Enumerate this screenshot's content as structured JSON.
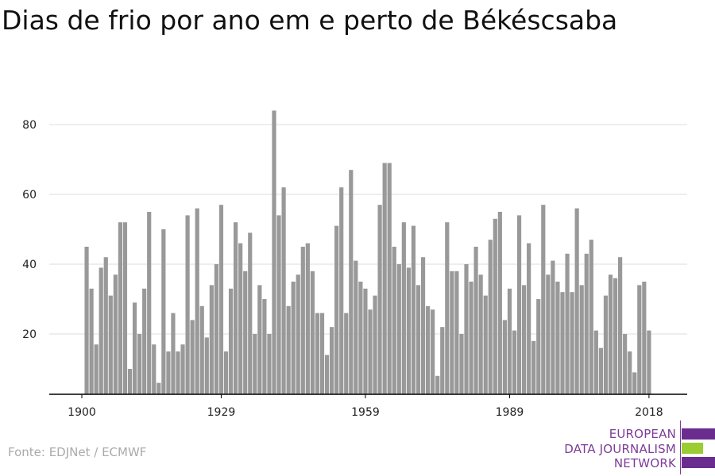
{
  "title": "Dias de frio por ano em e perto de Békéscsaba",
  "source": "Fonte: EDJNet / ECMWF",
  "logo": {
    "line1": "EUROPEAN",
    "line2": "DATA JOURNALISM",
    "line3": "NETWORK",
    "colors": [
      "#6a2c8e",
      "#9acd32",
      "#6a2c8e"
    ]
  },
  "colors": {
    "bar": "#999999",
    "grid": "#dddddd",
    "axis": "#000000"
  },
  "chart_data": {
    "type": "bar",
    "title": "Dias de frio por ano em e perto de Békéscsaba",
    "xlabel": "",
    "ylabel": "",
    "ylim": [
      3,
      86
    ],
    "xlim": [
      1899,
      2020
    ],
    "y_ticks": [
      20,
      40,
      60,
      80
    ],
    "x_ticks": [
      1900,
      1929,
      1959,
      1989,
      2018
    ],
    "grid": true,
    "x": [
      1901,
      1902,
      1903,
      1904,
      1905,
      1906,
      1907,
      1908,
      1909,
      1910,
      1911,
      1912,
      1913,
      1914,
      1915,
      1916,
      1917,
      1918,
      1919,
      1920,
      1921,
      1922,
      1923,
      1924,
      1925,
      1926,
      1927,
      1928,
      1929,
      1930,
      1931,
      1932,
      1933,
      1934,
      1935,
      1936,
      1937,
      1938,
      1939,
      1940,
      1941,
      1942,
      1943,
      1944,
      1945,
      1946,
      1947,
      1948,
      1949,
      1950,
      1951,
      1952,
      1953,
      1954,
      1955,
      1956,
      1957,
      1958,
      1959,
      1960,
      1961,
      1962,
      1963,
      1964,
      1965,
      1966,
      1967,
      1968,
      1969,
      1970,
      1971,
      1972,
      1973,
      1974,
      1975,
      1976,
      1977,
      1978,
      1979,
      1980,
      1981,
      1982,
      1983,
      1984,
      1985,
      1986,
      1987,
      1988,
      1989,
      1990,
      1991,
      1992,
      1993,
      1994,
      1995,
      1996,
      1997,
      1998,
      1999,
      2000,
      2001,
      2002,
      2003,
      2004,
      2005,
      2006,
      2007,
      2008,
      2009,
      2010,
      2011,
      2012,
      2013,
      2014,
      2015,
      2016,
      2017,
      2018
    ],
    "values": [
      45,
      33,
      17,
      39,
      42,
      31,
      37,
      52,
      52,
      10,
      29,
      20,
      33,
      55,
      17,
      6,
      50,
      15,
      26,
      15,
      17,
      54,
      24,
      56,
      28,
      19,
      34,
      40,
      57,
      15,
      33,
      52,
      46,
      38,
      49,
      20,
      34,
      30,
      20,
      84,
      54,
      62,
      28,
      35,
      37,
      45,
      46,
      38,
      26,
      26,
      14,
      22,
      51,
      62,
      26,
      67,
      41,
      35,
      33,
      27,
      31,
      57,
      69,
      69,
      45,
      40,
      52,
      39,
      51,
      34,
      42,
      28,
      27,
      8,
      22,
      52,
      38,
      38,
      20,
      40,
      35,
      45,
      37,
      31,
      47,
      53,
      55,
      24,
      33,
      21,
      54,
      34,
      46,
      18,
      30,
      57,
      37,
      41,
      35,
      32,
      43,
      32,
      56,
      34,
      43,
      47,
      21,
      16,
      31,
      37,
      36,
      42,
      20,
      15,
      9,
      34,
      35,
      21
    ]
  }
}
